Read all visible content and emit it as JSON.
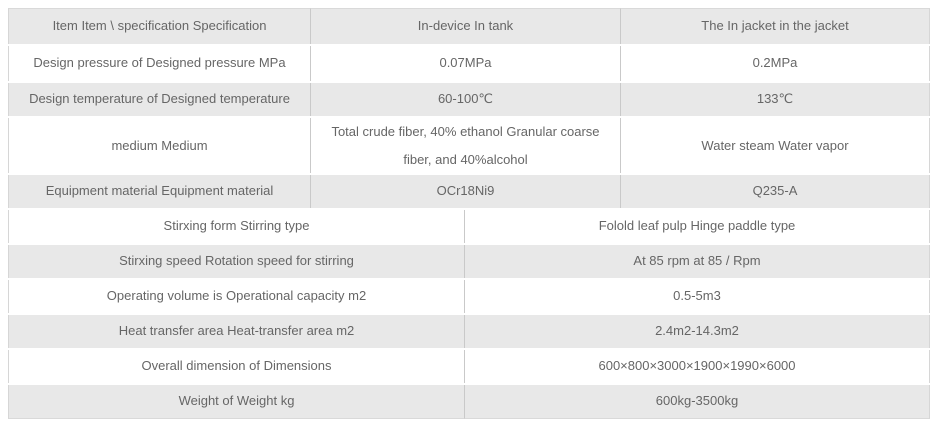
{
  "table": {
    "header": {
      "item": "Item Item \\ specification Specification",
      "tank": "In-device In tank",
      "jacket": "The In jacket in the jacket"
    },
    "rows_3col": [
      {
        "label": "Design pressure of Designed pressure MPa",
        "tank": "0.07MPa",
        "jacket": "0.2MPa"
      },
      {
        "label": "Design temperature of Designed temperature",
        "tank": "60-100℃",
        "jacket": "133℃"
      },
      {
        "label": "medium Medium",
        "tank": "Total crude fiber, 40% ethanol Granular coarse fiber, and 40%alcohol",
        "jacket": "Water steam Water vapor"
      },
      {
        "label": "Equipment material Equipment material",
        "tank": "OCr18Ni9",
        "jacket": "Q235-A"
      }
    ],
    "rows_2col": [
      {
        "label": "Stirxing form Stirring type",
        "value": "Folold leaf pulp Hinge paddle type"
      },
      {
        "label": "Stirxing speed Rotation speed for stirring",
        "value": "At 85 rpm at 85 / Rpm"
      },
      {
        "label": "Operating volume is Operational capacity m2",
        "value": "0.5-5m3"
      },
      {
        "label": "Heat transfer area Heat-transfer area m2",
        "value": "2.4m2-14.3m2"
      },
      {
        "label": "Overall dimension of Dimensions",
        "value": "600×800×3000×1900×1990×6000"
      },
      {
        "label": "Weight of Weight kg",
        "value": "600kg-3500kg"
      }
    ],
    "colors": {
      "row_alt_bg": "#e8e8e8",
      "row_bg": "#ffffff",
      "text": "#666666",
      "divider": "#c9c9c9"
    }
  }
}
